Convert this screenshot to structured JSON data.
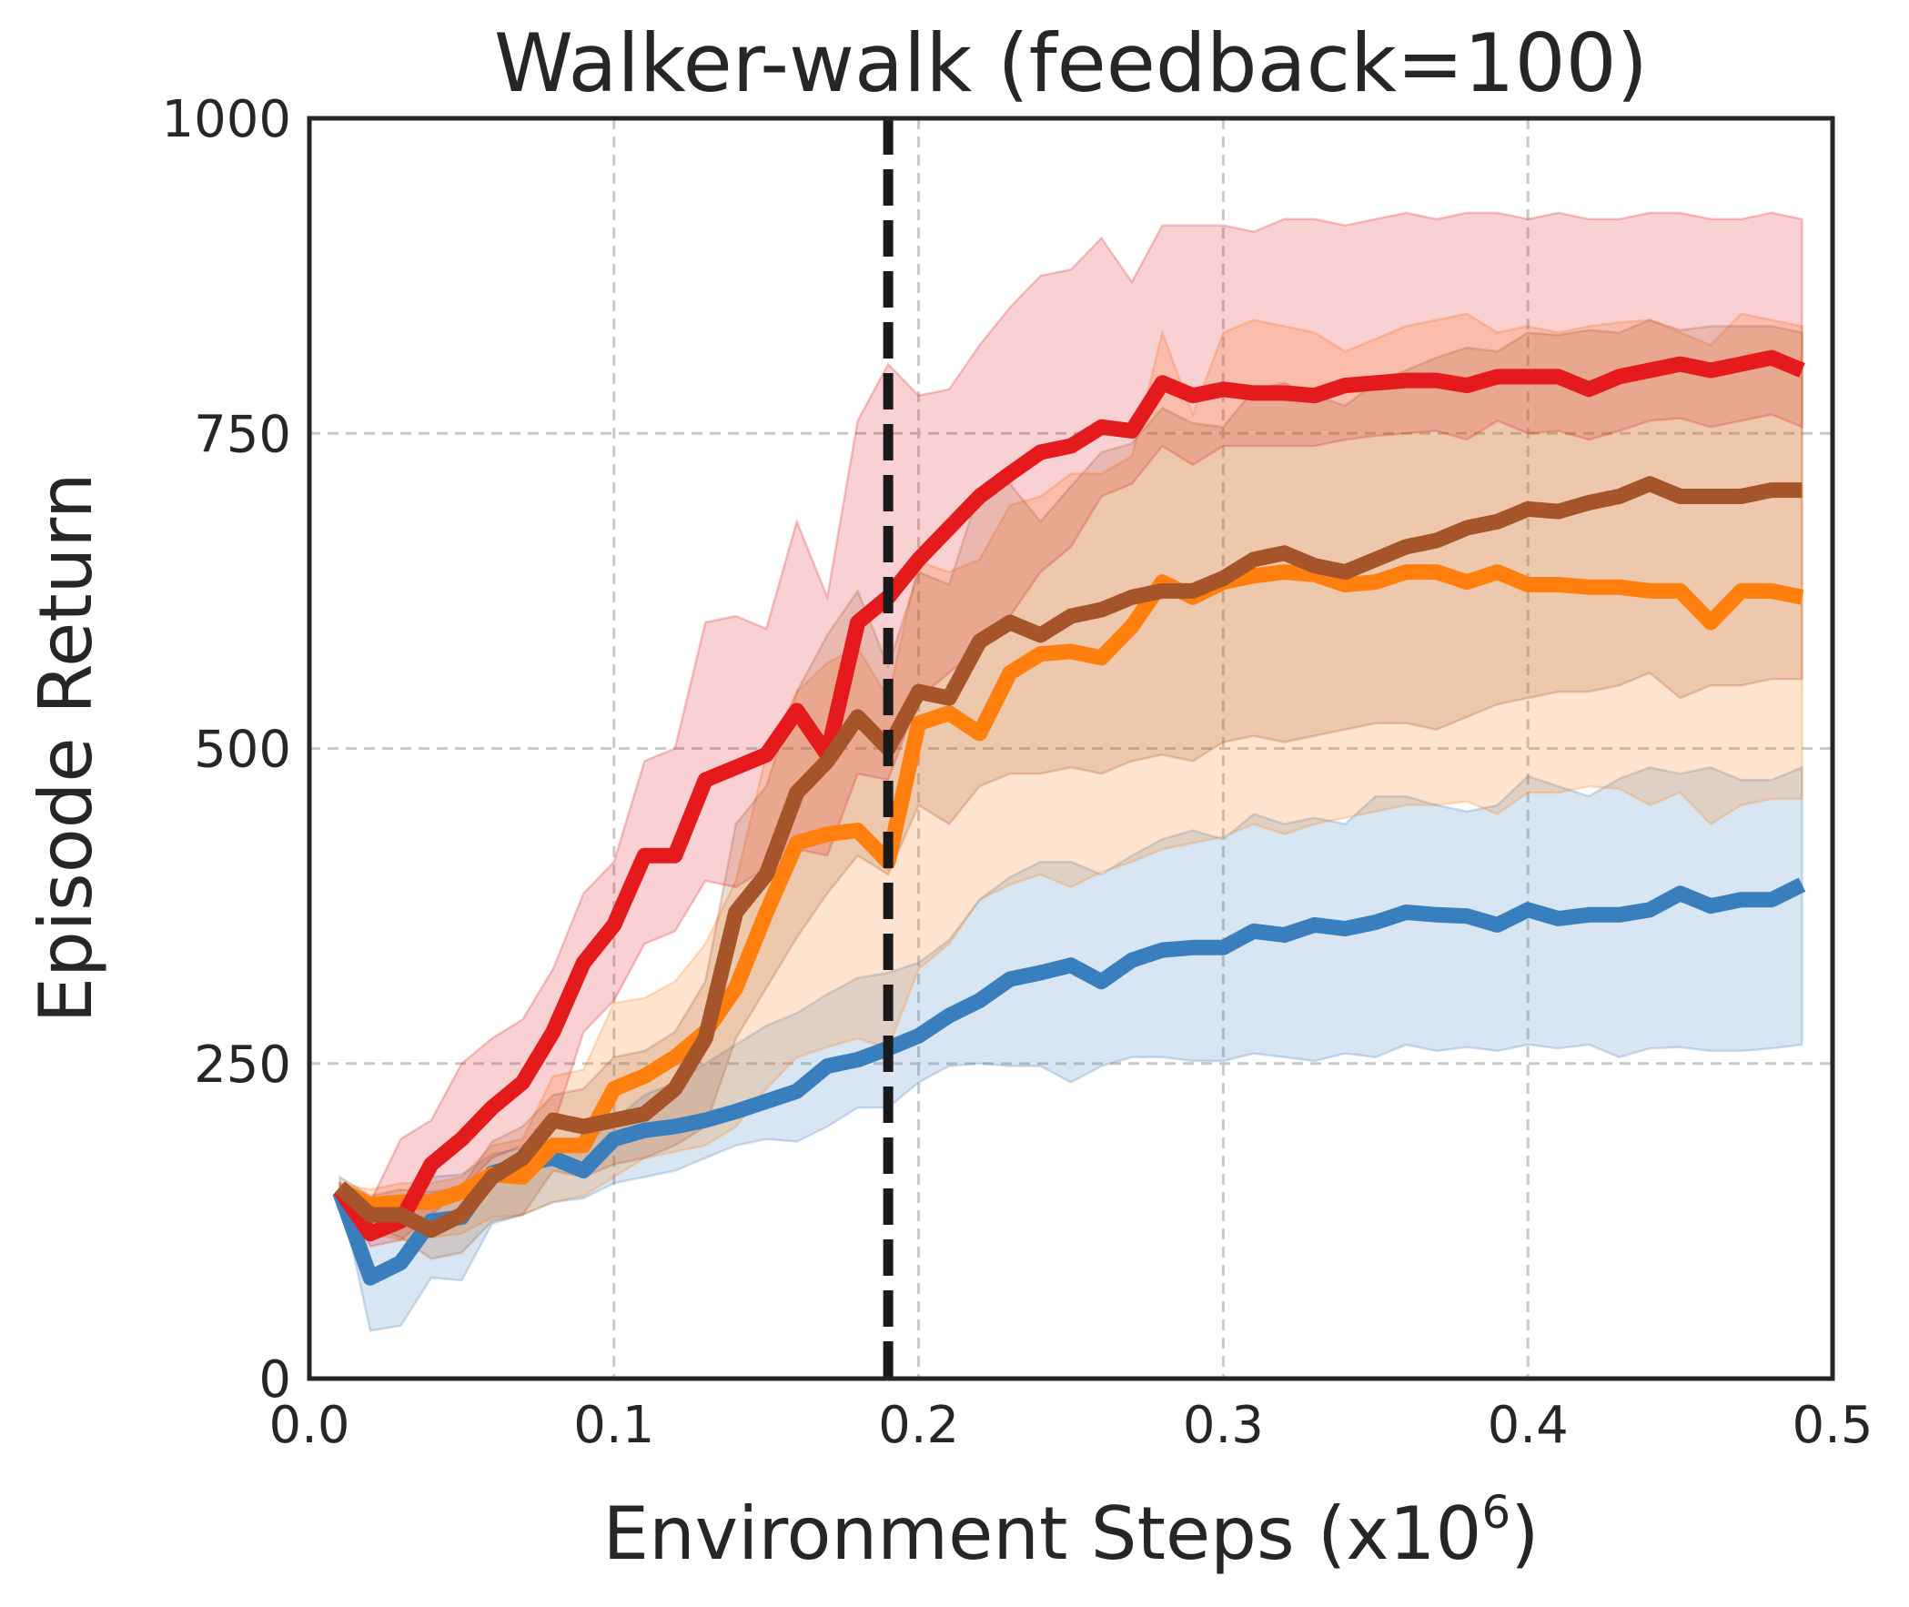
{
  "chart_data": {
    "type": "line",
    "title": "Walker-walk (feedback=100)",
    "xlabel": "Environment Steps (x10",
    "xlabel_superscript": "6",
    "xlabel_suffix": ")",
    "ylabel": "Episode Return",
    "xlim": [
      0.0,
      0.5
    ],
    "ylim": [
      0,
      1000
    ],
    "xticks": [
      0.0,
      0.1,
      0.2,
      0.3,
      0.4,
      0.5
    ],
    "xtick_labels": [
      "0.0",
      "0.1",
      "0.2",
      "0.3",
      "0.4",
      "0.5"
    ],
    "yticks": [
      0,
      250,
      500,
      750,
      1000
    ],
    "ytick_labels": [
      "0",
      "250",
      "500",
      "750",
      "1000"
    ],
    "grid": true,
    "vline": {
      "x": 0.19,
      "style": "dashed",
      "color": "#1a1a1a"
    },
    "x": [
      0.01,
      0.02,
      0.03,
      0.04,
      0.05,
      0.06,
      0.07,
      0.08,
      0.09,
      0.1,
      0.11,
      0.12,
      0.13,
      0.14,
      0.15,
      0.16,
      0.17,
      0.18,
      0.19,
      0.2,
      0.21,
      0.22,
      0.23,
      0.24,
      0.25,
      0.26,
      0.27,
      0.28,
      0.29,
      0.3,
      0.31,
      0.32,
      0.33,
      0.34,
      0.35,
      0.36,
      0.37,
      0.38,
      0.39,
      0.4,
      0.41,
      0.42,
      0.43,
      0.44,
      0.45,
      0.46,
      0.47,
      0.48,
      0.49
    ],
    "series": [
      {
        "name": "blue",
        "color": "#3a7fbd",
        "values": [
          148,
          80,
          92,
          125,
          128,
          163,
          170,
          175,
          165,
          190,
          197,
          200,
          205,
          212,
          220,
          228,
          248,
          253,
          262,
          272,
          288,
          300,
          317,
          322,
          328,
          315,
          332,
          340,
          342,
          342,
          355,
          352,
          360,
          357,
          362,
          370,
          368,
          367,
          360,
          372,
          365,
          368,
          368,
          372,
          385,
          375,
          380,
          380,
          392
        ],
        "lower": [
          148,
          38,
          42,
          80,
          78,
          123,
          130,
          140,
          143,
          155,
          160,
          165,
          175,
          185,
          190,
          188,
          200,
          215,
          215,
          235,
          248,
          250,
          248,
          248,
          235,
          248,
          255,
          255,
          252,
          252,
          258,
          255,
          252,
          258,
          255,
          265,
          260,
          263,
          260,
          265,
          262,
          265,
          255,
          262,
          263,
          260,
          260,
          262,
          265
        ],
        "upper": [
          150,
          125,
          138,
          160,
          162,
          178,
          183,
          188,
          185,
          205,
          225,
          235,
          250,
          265,
          280,
          290,
          305,
          318,
          322,
          330,
          348,
          380,
          398,
          410,
          410,
          400,
          415,
          428,
          435,
          428,
          448,
          440,
          445,
          440,
          462,
          462,
          455,
          450,
          455,
          478,
          470,
          462,
          476,
          485,
          480,
          485,
          475,
          475,
          485
        ]
      },
      {
        "name": "orange",
        "color": "#ff7f0e",
        "values": [
          150,
          138,
          140,
          140,
          148,
          162,
          160,
          185,
          185,
          230,
          240,
          255,
          275,
          310,
          370,
          425,
          432,
          435,
          410,
          520,
          528,
          512,
          560,
          575,
          577,
          572,
          597,
          632,
          620,
          632,
          637,
          640,
          638,
          630,
          632,
          640,
          640,
          632,
          640,
          630,
          630,
          628,
          628,
          625,
          625,
          600,
          625,
          625,
          620
        ],
        "lower": [
          150,
          115,
          110,
          112,
          115,
          128,
          130,
          140,
          145,
          160,
          175,
          180,
          185,
          200,
          230,
          255,
          263,
          270,
          262,
          325,
          345,
          380,
          392,
          400,
          390,
          402,
          410,
          420,
          425,
          430,
          440,
          432,
          440,
          445,
          450,
          455,
          455,
          458,
          448,
          465,
          465,
          470,
          468,
          455,
          465,
          440,
          455,
          460,
          460
        ],
        "upper": [
          155,
          150,
          155,
          155,
          160,
          185,
          190,
          240,
          245,
          298,
          302,
          315,
          345,
          395,
          495,
          545,
          568,
          580,
          540,
          648,
          640,
          650,
          693,
          700,
          718,
          718,
          732,
          830,
          765,
          830,
          840,
          835,
          830,
          815,
          825,
          835,
          840,
          845,
          830,
          835,
          830,
          835,
          838,
          840,
          830,
          820,
          845,
          840,
          835
        ]
      },
      {
        "name": "red",
        "color": "#e41a1c",
        "values": [
          150,
          115,
          125,
          170,
          190,
          215,
          235,
          275,
          330,
          360,
          415,
          415,
          475,
          485,
          495,
          530,
          495,
          600,
          620,
          650,
          675,
          700,
          718,
          735,
          740,
          755,
          752,
          790,
          780,
          785,
          782,
          782,
          780,
          788,
          790,
          792,
          792,
          788,
          795,
          795,
          795,
          785,
          795,
          800,
          805,
          800,
          805,
          810,
          800
        ],
        "lower": [
          150,
          105,
          110,
          130,
          150,
          175,
          185,
          200,
          275,
          300,
          345,
          355,
          395,
          390,
          405,
          420,
          415,
          480,
          475,
          540,
          560,
          580,
          605,
          640,
          660,
          700,
          710,
          740,
          725,
          740,
          740,
          740,
          740,
          745,
          748,
          750,
          752,
          745,
          760,
          750,
          752,
          745,
          752,
          760,
          762,
          755,
          760,
          765,
          755
        ],
        "upper": [
          155,
          140,
          190,
          205,
          250,
          270,
          285,
          325,
          385,
          410,
          490,
          500,
          600,
          605,
          595,
          680,
          620,
          760,
          805,
          780,
          785,
          820,
          850,
          875,
          880,
          905,
          870,
          915,
          915,
          915,
          910,
          920,
          920,
          915,
          920,
          925,
          920,
          925,
          925,
          920,
          925,
          920,
          920,
          925,
          925,
          920,
          920,
          925,
          920
        ]
      },
      {
        "name": "brown",
        "color": "#a6542a",
        "values": [
          152,
          130,
          130,
          118,
          130,
          160,
          175,
          205,
          200,
          205,
          210,
          230,
          270,
          370,
          400,
          465,
          490,
          525,
          500,
          545,
          540,
          585,
          600,
          590,
          605,
          610,
          620,
          625,
          625,
          635,
          650,
          655,
          645,
          640,
          650,
          660,
          665,
          675,
          680,
          690,
          688,
          695,
          700,
          710,
          700,
          700,
          700,
          705,
          705
        ],
        "lower": [
          152,
          120,
          112,
          95,
          100,
          125,
          130,
          165,
          160,
          170,
          175,
          185,
          200,
          270,
          310,
          350,
          385,
          415,
          400,
          455,
          440,
          470,
          480,
          480,
          485,
          480,
          490,
          495,
          490,
          505,
          510,
          505,
          510,
          515,
          520,
          520,
          515,
          525,
          535,
          540,
          545,
          545,
          550,
          560,
          540,
          550,
          550,
          555,
          555
        ],
        "upper": [
          160,
          145,
          150,
          148,
          152,
          188,
          200,
          225,
          230,
          255,
          260,
          275,
          315,
          440,
          470,
          545,
          590,
          625,
          565,
          640,
          630,
          705,
          710,
          680,
          708,
          735,
          742,
          770,
          758,
          755,
          785,
          790,
          780,
          772,
          790,
          800,
          810,
          818,
          815,
          830,
          828,
          832,
          830,
          840,
          832,
          835,
          835,
          835,
          830
        ]
      }
    ]
  }
}
